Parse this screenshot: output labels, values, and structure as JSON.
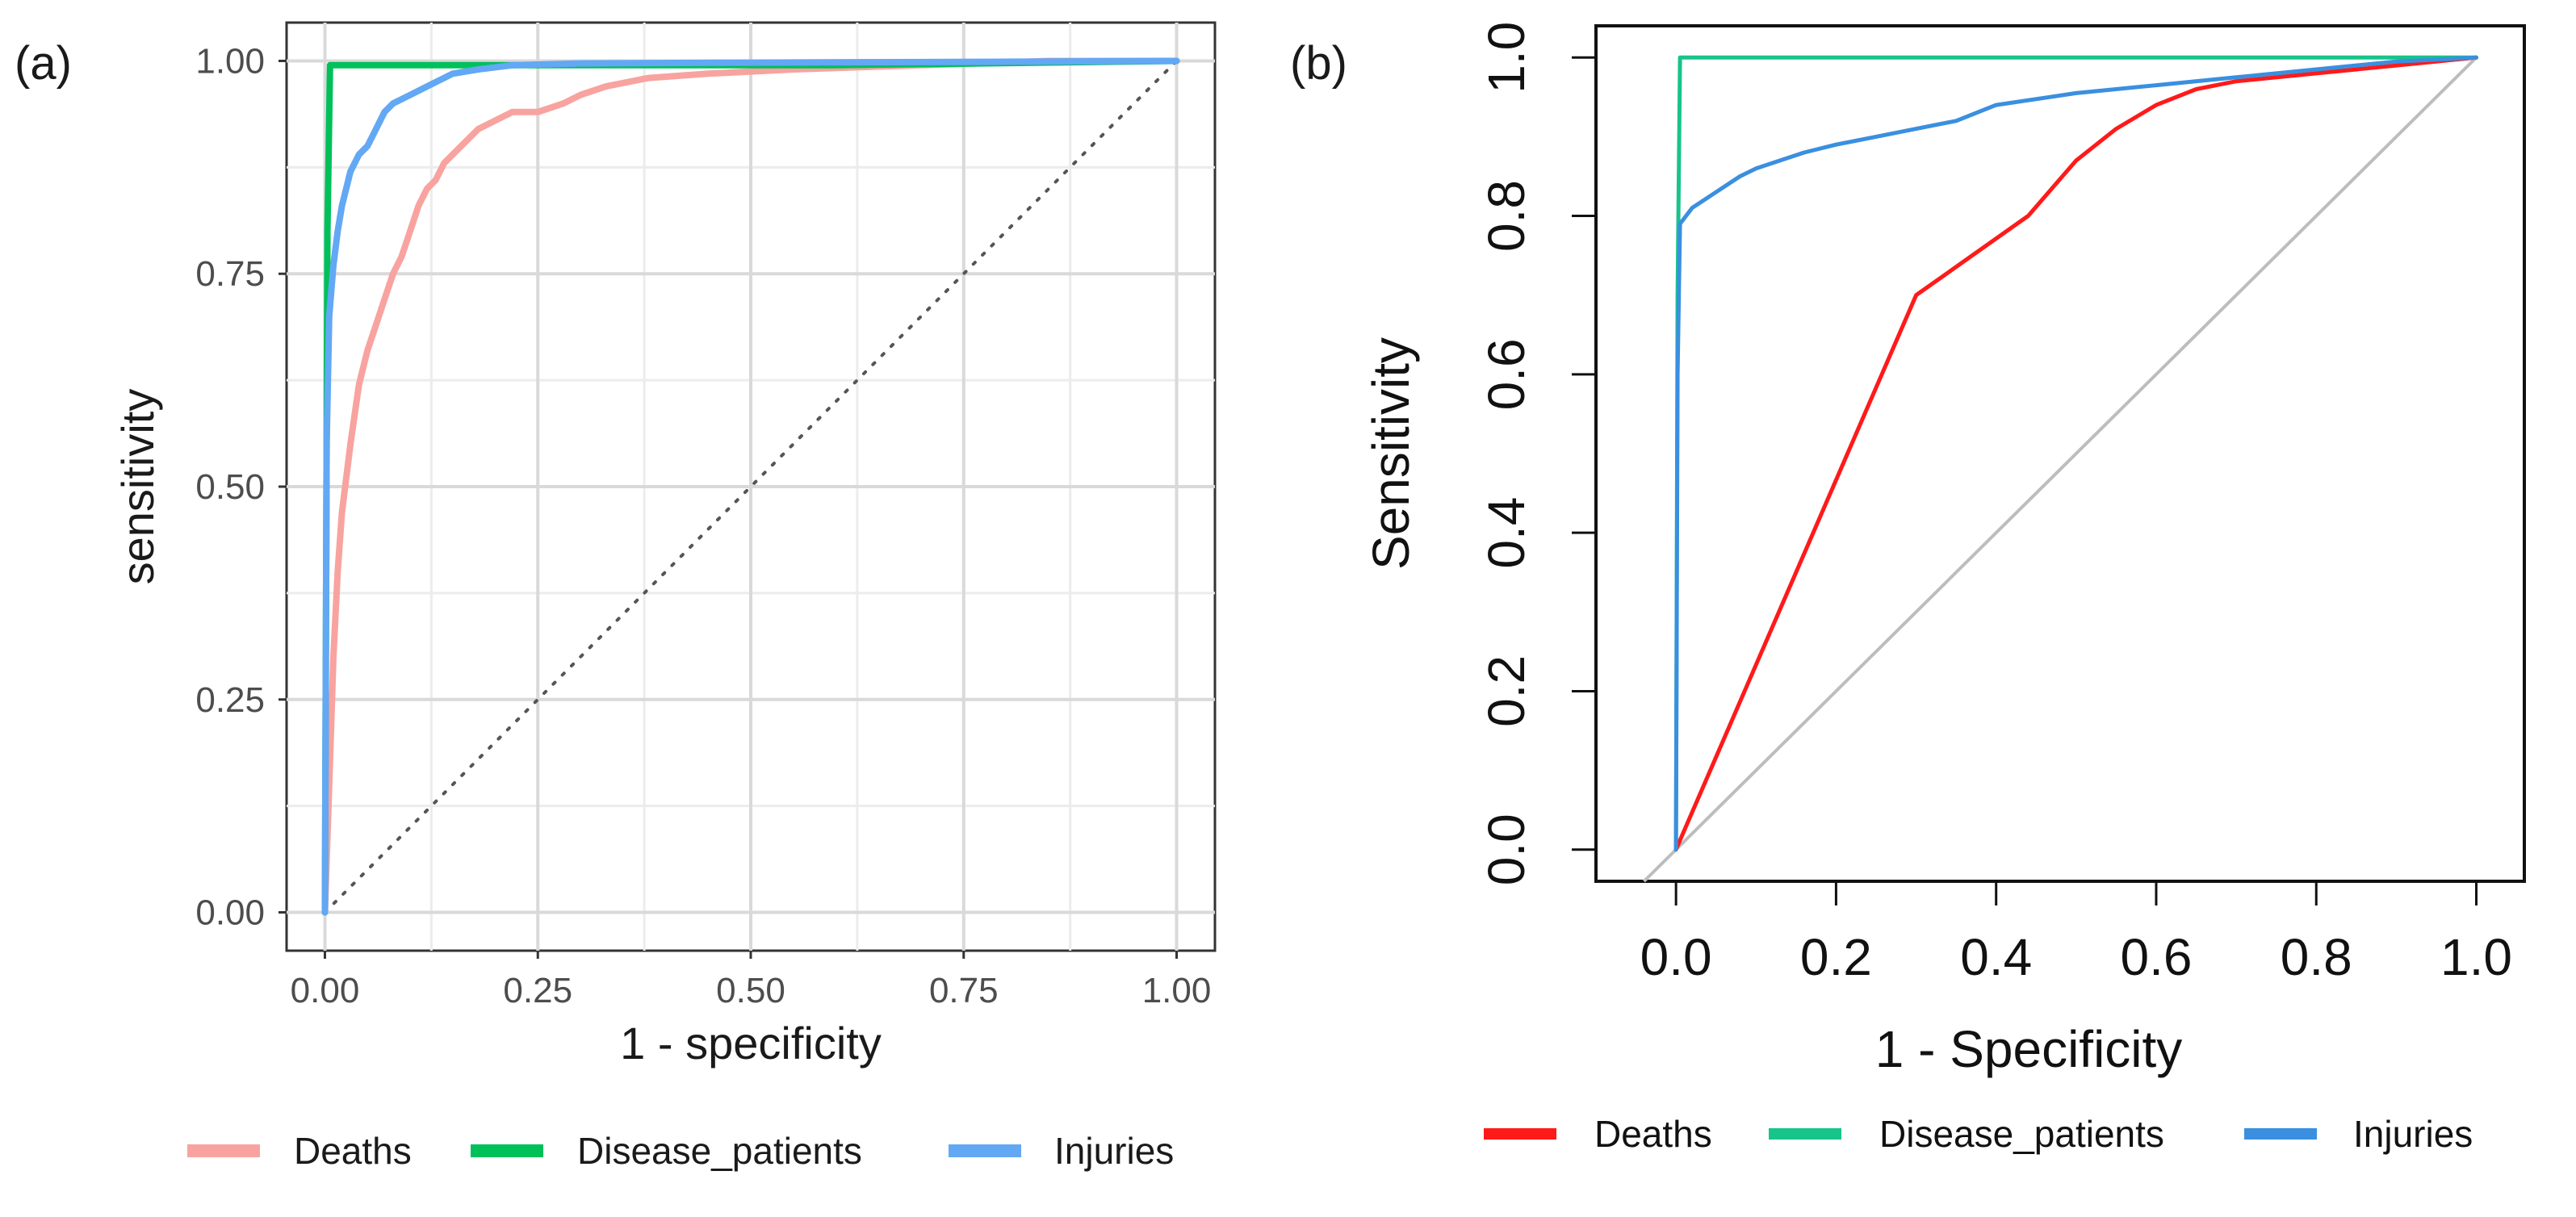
{
  "chart_data": [
    {
      "panel": "(a)",
      "type": "line",
      "title": "",
      "xlabel": "1 - specificity",
      "ylabel": "sensitivity",
      "xlim": [
        -0.045,
        1.045
      ],
      "ylim": [
        -0.045,
        1.045
      ],
      "xticks": [
        0,
        0.25,
        0.5,
        0.75,
        1
      ],
      "xtick_labels": [
        "0.00",
        "0.25",
        "0.50",
        "0.75",
        "1.00"
      ],
      "yticks": [
        0,
        0.25,
        0.5,
        0.75,
        1
      ],
      "ytick_labels": [
        "0.00",
        "0.25",
        "0.50",
        "0.75",
        "1.00"
      ],
      "grid": true,
      "legend_position": "bottom",
      "reference_line": {
        "style": "dotted",
        "color": "#555555",
        "from": [
          0,
          0
        ],
        "to": [
          1,
          1
        ]
      },
      "series": [
        {
          "name": "Deaths",
          "color": "#f8a3a0",
          "x": [
            0,
            0.005,
            0.01,
            0.015,
            0.02,
            0.03,
            0.04,
            0.05,
            0.06,
            0.07,
            0.08,
            0.09,
            0.1,
            0.11,
            0.12,
            0.13,
            0.14,
            0.16,
            0.18,
            0.2,
            0.22,
            0.25,
            0.28,
            0.3,
            0.33,
            0.38,
            0.45,
            0.55,
            0.7,
            0.85,
            1
          ],
          "y": [
            0,
            0.15,
            0.3,
            0.4,
            0.47,
            0.55,
            0.62,
            0.66,
            0.69,
            0.72,
            0.75,
            0.77,
            0.8,
            0.83,
            0.85,
            0.86,
            0.88,
            0.9,
            0.92,
            0.93,
            0.94,
            0.94,
            0.95,
            0.96,
            0.97,
            0.98,
            0.985,
            0.99,
            0.995,
            1,
            1
          ]
        },
        {
          "name": "Disease_patients",
          "color": "#00c05a",
          "x": [
            0,
            0.003,
            0.006,
            0.2,
            0.6,
            1
          ],
          "y": [
            0,
            0.8,
            0.995,
            0.995,
            0.995,
            1
          ]
        },
        {
          "name": "Injuries",
          "color": "#62a8f4",
          "x": [
            0,
            0.002,
            0.005,
            0.01,
            0.015,
            0.02,
            0.03,
            0.04,
            0.05,
            0.06,
            0.07,
            0.08,
            0.1,
            0.12,
            0.15,
            0.18,
            0.22,
            0.3,
            0.5,
            0.8,
            1
          ],
          "y": [
            0,
            0.55,
            0.7,
            0.76,
            0.8,
            0.83,
            0.87,
            0.89,
            0.9,
            0.92,
            0.94,
            0.95,
            0.96,
            0.97,
            0.985,
            0.99,
            0.995,
            0.997,
            0.998,
            0.999,
            1
          ]
        }
      ]
    },
    {
      "panel": "(b)",
      "type": "line",
      "title": "",
      "xlabel": "1 - Specificity",
      "ylabel": "Sensitivity",
      "xlim": [
        -0.1,
        1.06
      ],
      "ylim": [
        -0.04,
        1.04
      ],
      "xticks": [
        0,
        0.2,
        0.4,
        0.6,
        0.8,
        1
      ],
      "xtick_labels": [
        "0.0",
        "0.2",
        "0.4",
        "0.6",
        "0.8",
        "1.0"
      ],
      "yticks": [
        0,
        0.2,
        0.4,
        0.6,
        0.8,
        1
      ],
      "ytick_labels": [
        "0.0",
        "0.2",
        "0.4",
        "0.6",
        "0.8",
        "1.0"
      ],
      "grid": false,
      "legend_position": "bottom",
      "reference_line": {
        "style": "solid",
        "color": "#bdbdbd",
        "from": [
          -0.04,
          -0.04
        ],
        "to": [
          1,
          1
        ]
      },
      "series": [
        {
          "name": "Deaths",
          "color": "#ff1a1a",
          "x": [
            0,
            0.3,
            0.44,
            0.5,
            0.55,
            0.6,
            0.65,
            0.7,
            0.8,
            0.9,
            1
          ],
          "y": [
            0,
            0.7,
            0.8,
            0.87,
            0.91,
            0.94,
            0.96,
            0.97,
            0.98,
            0.99,
            1
          ]
        },
        {
          "name": "Disease_patients",
          "color": "#17c48a",
          "x": [
            0,
            0.002,
            0.005,
            0.5,
            1
          ],
          "y": [
            0,
            0.7,
            1,
            1,
            1
          ]
        },
        {
          "name": "Injuries",
          "color": "#3a8fe0",
          "x": [
            0,
            0.002,
            0.005,
            0.02,
            0.05,
            0.08,
            0.1,
            0.13,
            0.16,
            0.2,
            0.25,
            0.3,
            0.35,
            0.4,
            0.5,
            0.6,
            0.7,
            0.8,
            0.9,
            1
          ],
          "y": [
            0,
            0.6,
            0.79,
            0.81,
            0.83,
            0.85,
            0.86,
            0.87,
            0.88,
            0.89,
            0.9,
            0.91,
            0.92,
            0.94,
            0.955,
            0.965,
            0.975,
            0.985,
            0.995,
            1
          ]
        }
      ]
    }
  ]
}
